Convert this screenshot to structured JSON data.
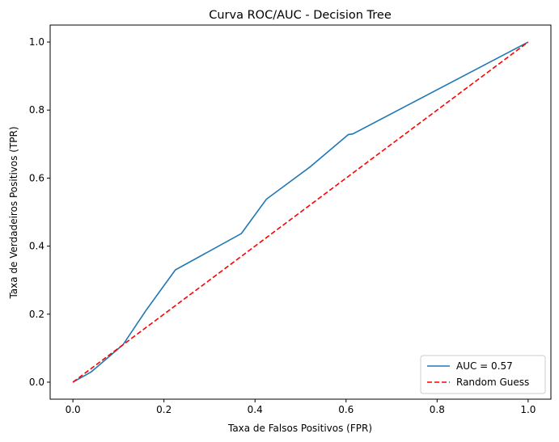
{
  "chart_data": {
    "type": "line",
    "title": "Curva ROC/AUC - Decision Tree",
    "xlabel": "Taxa de Falsos Positivos (FPR)",
    "ylabel": "Taxa de Verdadeiros Positivos (TPR)",
    "xlim": [
      -0.05,
      1.05
    ],
    "ylim": [
      -0.05,
      1.05
    ],
    "xticks": [
      0.0,
      0.2,
      0.4,
      0.6,
      0.8,
      1.0
    ],
    "yticks": [
      0.0,
      0.2,
      0.4,
      0.6,
      0.8,
      1.0
    ],
    "xtick_labels": [
      "0.0",
      "0.2",
      "0.4",
      "0.6",
      "0.8",
      "1.0"
    ],
    "ytick_labels": [
      "0.0",
      "0.2",
      "0.4",
      "0.6",
      "0.8",
      "1.0"
    ],
    "grid": false,
    "legend_position": "lower-right",
    "series": [
      {
        "name": "AUC = 0.57",
        "color": "#1f77b4",
        "style": "solid",
        "x": [
          0.0,
          0.04,
          0.11,
          0.16,
          0.225,
          0.37,
          0.425,
          0.52,
          0.605,
          0.615,
          1.0
        ],
        "y": [
          0.0,
          0.03,
          0.11,
          0.21,
          0.33,
          0.437,
          0.538,
          0.632,
          0.728,
          0.73,
          1.0
        ]
      },
      {
        "name": "Random Guess",
        "color": "#ff0000",
        "style": "dashed",
        "x": [
          0.0,
          1.0
        ],
        "y": [
          0.0,
          1.0
        ]
      }
    ]
  }
}
